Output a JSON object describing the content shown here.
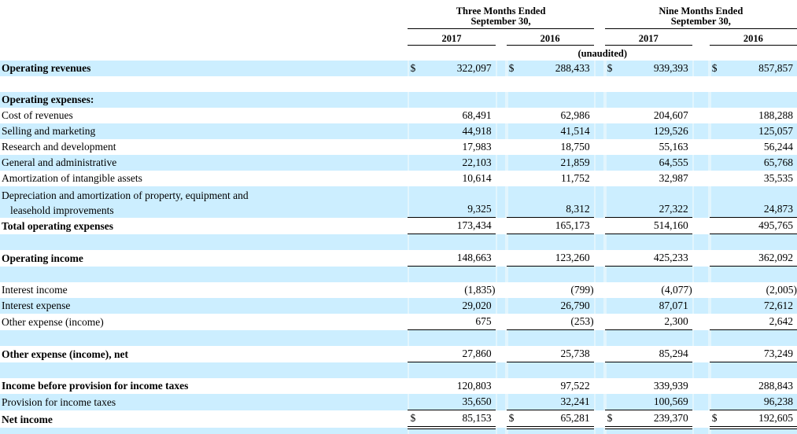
{
  "colors": {
    "row_stripe": "#cceeff",
    "seam": "#e2f5fd",
    "text": "#000000"
  },
  "table": {
    "currency_symbol": "$",
    "header": {
      "col_groups": [
        {
          "line1": "Three Months Ended",
          "line2": "September 30,"
        },
        {
          "line1": "Nine Months Ended",
          "line2": "September 30,"
        }
      ],
      "years": [
        "2017",
        "2016",
        "2017",
        "2016"
      ],
      "unaudited": "(unaudited)"
    },
    "rows": [
      {
        "name": "row-operating-revenues",
        "label": "Operating revenues",
        "bold": true,
        "bg": "blue",
        "dollar": true,
        "values": [
          "322,097",
          "288,433",
          "939,393",
          "857,857"
        ],
        "underline": "none"
      },
      {
        "name": "row-spacer",
        "label": "",
        "bg": "white",
        "values": [
          "",
          "",
          "",
          ""
        ],
        "underline": "none"
      },
      {
        "name": "row-operating-expenses-heading",
        "label": "Operating expenses:",
        "bold": true,
        "bg": "blue",
        "values": [
          "",
          "",
          "",
          ""
        ],
        "underline": "none"
      },
      {
        "name": "row-cost-of-revenues",
        "label": "Cost of revenues",
        "bg": "white",
        "values": [
          "68,491",
          "62,986",
          "204,607",
          "188,288"
        ],
        "underline": "none"
      },
      {
        "name": "row-selling-and-marketing",
        "label": "Selling and marketing",
        "bg": "blue",
        "values": [
          "44,918",
          "41,514",
          "129,526",
          "125,057"
        ],
        "underline": "none"
      },
      {
        "name": "row-research-and-development",
        "label": "Research and development",
        "bg": "white",
        "values": [
          "17,983",
          "18,750",
          "55,163",
          "56,244"
        ],
        "underline": "none"
      },
      {
        "name": "row-general-and-administrative",
        "label": "General and administrative",
        "bg": "blue",
        "values": [
          "22,103",
          "21,859",
          "64,555",
          "65,768"
        ],
        "underline": "none"
      },
      {
        "name": "row-amortization-of-intangible-assets",
        "label": "Amortization of intangible assets",
        "bg": "white",
        "values": [
          "10,614",
          "11,752",
          "32,987",
          "35,535"
        ],
        "underline": "none"
      },
      {
        "name": "row-depreciation-and-amortization",
        "label": "Depreciation and amortization of property, equipment and",
        "label2": "leasehold improvements",
        "bg": "blue",
        "tall": true,
        "values": [
          "9,325",
          "8,312",
          "27,322",
          "24,873"
        ],
        "underline": "single"
      },
      {
        "name": "row-total-operating-expenses",
        "label": "Total operating expenses",
        "bold": true,
        "bg": "white",
        "values": [
          "173,434",
          "165,173",
          "514,160",
          "495,765"
        ],
        "underline": "single"
      },
      {
        "name": "row-spacer",
        "label": "",
        "bg": "blue",
        "values": [
          "",
          "",
          "",
          ""
        ],
        "underline": "none"
      },
      {
        "name": "row-operating-income",
        "label": "Operating income",
        "bold": true,
        "bg": "white",
        "values": [
          "148,663",
          "123,260",
          "425,233",
          "362,092"
        ],
        "underline": "single"
      },
      {
        "name": "row-spacer",
        "label": "",
        "bg": "blue",
        "values": [
          "",
          "",
          "",
          ""
        ],
        "underline": "none"
      },
      {
        "name": "row-interest-income",
        "label": "Interest income",
        "bg": "white",
        "values": [
          "(1,835)",
          "(799)",
          "(4,077)",
          "(2,005)"
        ],
        "underline": "none"
      },
      {
        "name": "row-interest-expense",
        "label": "Interest expense",
        "bg": "blue",
        "values": [
          "29,020",
          "26,790",
          "87,071",
          "72,612"
        ],
        "underline": "none"
      },
      {
        "name": "row-other-expense-income",
        "label": "Other expense (income)",
        "bg": "white",
        "values": [
          "675",
          "(253)",
          "2,300",
          "2,642"
        ],
        "underline": "single"
      },
      {
        "name": "row-spacer",
        "label": "",
        "bg": "blue",
        "values": [
          "",
          "",
          "",
          ""
        ],
        "underline": "none"
      },
      {
        "name": "row-other-expense-income-net",
        "label": "Other expense (income), net",
        "bold": true,
        "bg": "white",
        "values": [
          "27,860",
          "25,738",
          "85,294",
          "73,249"
        ],
        "underline": "single"
      },
      {
        "name": "row-spacer",
        "label": "",
        "bg": "blue",
        "values": [
          "",
          "",
          "",
          ""
        ],
        "underline": "none"
      },
      {
        "name": "row-income-before-taxes",
        "label": "Income before provision for income taxes",
        "bold": true,
        "bg": "white",
        "values": [
          "120,803",
          "97,522",
          "339,939",
          "288,843"
        ],
        "underline": "none"
      },
      {
        "name": "row-provision-for-income-taxes",
        "label": "Provision for income taxes",
        "bg": "blue",
        "values": [
          "35,650",
          "32,241",
          "100,569",
          "96,238"
        ],
        "underline": "single"
      },
      {
        "name": "row-net-income",
        "label": "Net income",
        "bold": true,
        "bg": "white",
        "dollar": true,
        "values": [
          "85,153",
          "65,281",
          "239,370",
          "192,605"
        ],
        "underline": "double"
      },
      {
        "name": "row-spacer",
        "label": "",
        "bg": "blue",
        "last": true,
        "values": [
          "",
          "",
          "",
          ""
        ],
        "underline": "none"
      }
    ]
  }
}
